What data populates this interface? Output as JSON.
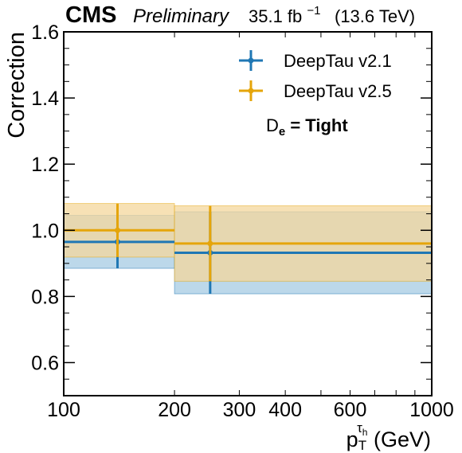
{
  "header": {
    "experiment": "CMS",
    "status": "Preliminary",
    "lumi_value": "35.1 fb",
    "lumi_exp": "−1",
    "energy": "(13.6 TeV)"
  },
  "annotation": {
    "main": "D",
    "sub": "e",
    "rest": " =  Tight"
  },
  "colors": {
    "v21": "#1f77b4",
    "v21_band": "#a6cbe3",
    "v25": "#e5a50a",
    "v25_band": "#f4d79c",
    "overlap": "#c4c69e"
  },
  "chart_data": {
    "type": "scatter",
    "xscale": "log",
    "xlim": [
      100,
      1000
    ],
    "ylim": [
      0.5,
      1.6
    ],
    "ylabel": "Correction",
    "xlabel_main": "p",
    "xlabel_sub": "T",
    "xlabel_sup_main": "τ",
    "xlabel_sup_sub": "h",
    "xlabel_unit": " (GeV)",
    "xticks": [
      {
        "value": 100,
        "label": "100"
      },
      {
        "value": 200,
        "label": "200"
      },
      {
        "value": 300,
        "label": "300"
      },
      {
        "value": 400,
        "label": "400"
      },
      {
        "value": 600,
        "label": "600"
      },
      {
        "value": 1000,
        "label": "1000"
      }
    ],
    "yticks": [
      {
        "value": 0.6,
        "label": "0.6"
      },
      {
        "value": 0.8,
        "label": "0.8"
      },
      {
        "value": 1.0,
        "label": "1.0"
      },
      {
        "value": 1.2,
        "label": "1.2"
      },
      {
        "value": 1.4,
        "label": "1.4"
      },
      {
        "value": 1.6,
        "label": "1.6"
      }
    ],
    "legend_position": "top-right",
    "series": [
      {
        "name": "DeepTau v2.1",
        "color": "#1f77b4",
        "points": [
          {
            "x": 140,
            "xlo": 100,
            "xhi": 200,
            "y": 0.965,
            "ylo": 0.885,
            "yhi": 1.045
          },
          {
            "x": 250,
            "xlo": 200,
            "xhi": 1000,
            "y": 0.932,
            "ylo": 0.808,
            "yhi": 1.056
          }
        ]
      },
      {
        "name": "DeepTau v2.5",
        "color": "#e5a50a",
        "points": [
          {
            "x": 140,
            "xlo": 100,
            "xhi": 200,
            "y": 1.0,
            "ylo": 0.919,
            "yhi": 1.081
          },
          {
            "x": 250,
            "xlo": 200,
            "xhi": 1000,
            "y": 0.96,
            "ylo": 0.846,
            "yhi": 1.074
          }
        ]
      }
    ]
  }
}
